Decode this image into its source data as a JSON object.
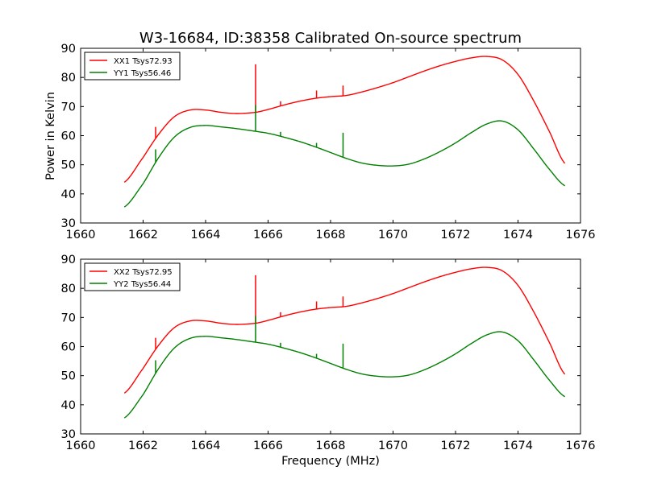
{
  "figure": {
    "title": "W3-16684, ID:38358 Calibrated On-source spectrum",
    "xlabel": "Frequency (MHz)",
    "ylabel": "Power in Kelvin"
  },
  "chart_data": [
    {
      "type": "line",
      "xlim": [
        1660,
        1676
      ],
      "ylim": [
        30,
        90
      ],
      "xticks": [
        1660,
        1662,
        1664,
        1666,
        1668,
        1670,
        1672,
        1674,
        1676
      ],
      "yticks": [
        30,
        40,
        50,
        60,
        70,
        80,
        90
      ],
      "legend_position": "top-left",
      "ylabel": "Power in Kelvin",
      "series": [
        {
          "name": "XX1 Tsys72.93",
          "color": "#ff0000",
          "x": [
            1661.4,
            1662.0,
            1662.5,
            1663.0,
            1663.5,
            1664.0,
            1664.5,
            1665.0,
            1665.6,
            1666.0,
            1666.5,
            1667.0,
            1667.5,
            1668.0,
            1668.5,
            1669.0,
            1669.5,
            1670.0,
            1670.5,
            1671.0,
            1671.5,
            1672.0,
            1672.5,
            1673.0,
            1673.5,
            1674.0,
            1674.5,
            1675.0,
            1675.5
          ],
          "y": [
            44,
            52.5,
            60.5,
            66.5,
            68.8,
            68.8,
            68.0,
            67.6,
            68.0,
            69.0,
            70.5,
            71.8,
            72.8,
            73.4,
            73.8,
            75.0,
            76.5,
            78.2,
            80.2,
            82.2,
            84.0,
            85.5,
            86.7,
            87.2,
            86.0,
            81.0,
            72.0,
            61.5,
            50.5
          ],
          "spikes": [
            {
              "x": 1662.4,
              "peak": 63
            },
            {
              "x": 1665.6,
              "peak": 84.5
            },
            {
              "x": 1666.4,
              "peak": 71.8
            },
            {
              "x": 1667.55,
              "peak": 75.5
            },
            {
              "x": 1668.4,
              "peak": 77.2
            }
          ]
        },
        {
          "name": "YY1 Tsys56.46",
          "color": "#008000",
          "x": [
            1661.4,
            1662.0,
            1662.5,
            1663.0,
            1663.5,
            1664.0,
            1664.5,
            1665.0,
            1665.6,
            1666.0,
            1666.5,
            1667.0,
            1667.5,
            1668.0,
            1668.5,
            1669.0,
            1669.5,
            1670.0,
            1670.5,
            1671.0,
            1671.5,
            1672.0,
            1672.5,
            1673.0,
            1673.5,
            1674.0,
            1674.5,
            1675.0,
            1675.5
          ],
          "y": [
            35.5,
            43.5,
            52.5,
            59.5,
            62.8,
            63.5,
            63.0,
            62.4,
            61.5,
            60.8,
            59.5,
            58.0,
            56.2,
            54.2,
            52.2,
            50.6,
            49.8,
            49.6,
            50.2,
            52.0,
            54.5,
            57.5,
            61.0,
            64.0,
            65.0,
            62.0,
            55.5,
            48.5,
            42.8
          ],
          "spikes": [
            {
              "x": 1662.4,
              "peak": 55.3
            },
            {
              "x": 1665.6,
              "peak": 70.5
            },
            {
              "x": 1666.4,
              "peak": 61.3
            },
            {
              "x": 1667.55,
              "peak": 57.5
            },
            {
              "x": 1668.4,
              "peak": 61
            }
          ]
        }
      ]
    },
    {
      "type": "line",
      "xlim": [
        1660,
        1676
      ],
      "ylim": [
        30,
        90
      ],
      "xticks": [
        1660,
        1662,
        1664,
        1666,
        1668,
        1670,
        1672,
        1674,
        1676
      ],
      "yticks": [
        30,
        40,
        50,
        60,
        70,
        80,
        90
      ],
      "legend_position": "top-left",
      "xlabel": "Frequency (MHz)",
      "series": [
        {
          "name": "XX2 Tsys72.95",
          "color": "#ff0000",
          "x": [
            1661.4,
            1662.0,
            1662.5,
            1663.0,
            1663.5,
            1664.0,
            1664.5,
            1665.0,
            1665.6,
            1666.0,
            1666.5,
            1667.0,
            1667.5,
            1668.0,
            1668.5,
            1669.0,
            1669.5,
            1670.0,
            1670.5,
            1671.0,
            1671.5,
            1672.0,
            1672.5,
            1673.0,
            1673.5,
            1674.0,
            1674.5,
            1675.0,
            1675.5
          ],
          "y": [
            44,
            52.5,
            60.5,
            66.5,
            68.8,
            68.8,
            68.0,
            67.6,
            68.0,
            69.0,
            70.5,
            71.8,
            72.8,
            73.4,
            73.8,
            75.0,
            76.5,
            78.2,
            80.2,
            82.2,
            84.0,
            85.5,
            86.7,
            87.2,
            86.0,
            81.0,
            72.0,
            61.5,
            50.5
          ],
          "spikes": [
            {
              "x": 1662.4,
              "peak": 63
            },
            {
              "x": 1665.6,
              "peak": 84.5
            },
            {
              "x": 1666.4,
              "peak": 71.8
            },
            {
              "x": 1667.55,
              "peak": 75.5
            },
            {
              "x": 1668.4,
              "peak": 77.2
            }
          ]
        },
        {
          "name": "YY2 Tsys56.44",
          "color": "#008000",
          "x": [
            1661.4,
            1662.0,
            1662.5,
            1663.0,
            1663.5,
            1664.0,
            1664.5,
            1665.0,
            1665.6,
            1666.0,
            1666.5,
            1667.0,
            1667.5,
            1668.0,
            1668.5,
            1669.0,
            1669.5,
            1670.0,
            1670.5,
            1671.0,
            1671.5,
            1672.0,
            1672.5,
            1673.0,
            1673.5,
            1674.0,
            1674.5,
            1675.0,
            1675.5
          ],
          "y": [
            35.5,
            43.5,
            52.5,
            59.5,
            62.8,
            63.5,
            63.0,
            62.4,
            61.5,
            60.8,
            59.5,
            58.0,
            56.2,
            54.2,
            52.2,
            50.6,
            49.8,
            49.6,
            50.2,
            52.0,
            54.5,
            57.5,
            61.0,
            64.0,
            65.0,
            62.0,
            55.5,
            48.5,
            42.8
          ],
          "spikes": [
            {
              "x": 1662.4,
              "peak": 55.3
            },
            {
              "x": 1665.6,
              "peak": 70.5
            },
            {
              "x": 1666.4,
              "peak": 61.3
            },
            {
              "x": 1667.55,
              "peak": 57.5
            },
            {
              "x": 1668.4,
              "peak": 61
            }
          ]
        }
      ]
    }
  ]
}
